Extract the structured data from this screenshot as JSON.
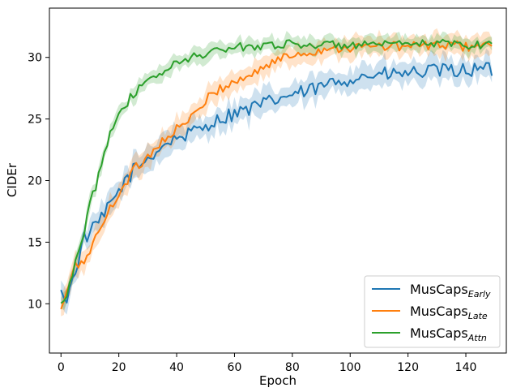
{
  "chart_data": {
    "type": "line",
    "title": "",
    "xlabel": "Epoch",
    "ylabel": "CIDEr",
    "xlim": [
      -4,
      154
    ],
    "ylim": [
      6,
      34
    ],
    "xticks": [
      0,
      20,
      40,
      60,
      80,
      100,
      120,
      140
    ],
    "yticks": [
      10,
      15,
      20,
      25,
      30
    ],
    "grid": false,
    "legend_position": "lower-right",
    "series": [
      {
        "name": "MusCaps",
        "subscript": "Early",
        "color": "#1f77b4",
        "knots": [
          [
            0,
            11.0
          ],
          [
            2,
            10.2
          ],
          [
            5,
            12.8
          ],
          [
            8,
            15.3
          ],
          [
            11,
            16.0
          ],
          [
            15,
            17.2
          ],
          [
            20,
            19.2
          ],
          [
            25,
            20.8
          ],
          [
            30,
            21.8
          ],
          [
            35,
            22.8
          ],
          [
            40,
            23.5
          ],
          [
            45,
            23.8
          ],
          [
            50,
            24.5
          ],
          [
            55,
            25.0
          ],
          [
            60,
            25.5
          ],
          [
            65,
            25.8
          ],
          [
            70,
            26.2
          ],
          [
            75,
            26.6
          ],
          [
            80,
            27.0
          ],
          [
            85,
            27.2
          ],
          [
            90,
            27.6
          ],
          [
            95,
            28.0
          ],
          [
            100,
            28.3
          ],
          [
            105,
            28.5
          ],
          [
            110,
            28.6
          ],
          [
            115,
            28.6
          ],
          [
            120,
            28.7
          ],
          [
            125,
            28.8
          ],
          [
            130,
            28.9
          ],
          [
            135,
            28.9
          ],
          [
            140,
            29.0
          ],
          [
            145,
            29.0
          ],
          [
            149,
            29.0
          ]
        ],
        "band_half_width": 0.9,
        "noise": 0.6
      },
      {
        "name": "MusCaps",
        "subscript": "Late",
        "color": "#ff7f0e",
        "knots": [
          [
            0,
            9.5
          ],
          [
            2,
            11.0
          ],
          [
            5,
            13.0
          ],
          [
            8,
            13.5
          ],
          [
            11,
            14.8
          ],
          [
            15,
            16.8
          ],
          [
            20,
            19.0
          ],
          [
            25,
            20.8
          ],
          [
            30,
            22.0
          ],
          [
            35,
            23.2
          ],
          [
            40,
            24.2
          ],
          [
            45,
            25.0
          ],
          [
            50,
            26.5
          ],
          [
            55,
            27.5
          ],
          [
            60,
            28.0
          ],
          [
            65,
            28.5
          ],
          [
            70,
            29.2
          ],
          [
            75,
            29.8
          ],
          [
            80,
            30.2
          ],
          [
            85,
            30.4
          ],
          [
            90,
            30.6
          ],
          [
            95,
            30.8
          ],
          [
            100,
            30.8
          ],
          [
            110,
            30.9
          ],
          [
            120,
            30.9
          ],
          [
            130,
            31.0
          ],
          [
            140,
            30.9
          ],
          [
            149,
            31.0
          ]
        ],
        "band_half_width": 0.8,
        "noise": 0.4
      },
      {
        "name": "MusCaps",
        "subscript": "Attn",
        "color": "#2ca02c",
        "knots": [
          [
            0,
            10.0
          ],
          [
            2,
            10.5
          ],
          [
            4,
            12.5
          ],
          [
            6,
            14.0
          ],
          [
            8,
            15.8
          ],
          [
            10,
            18.5
          ],
          [
            12,
            19.5
          ],
          [
            15,
            22.5
          ],
          [
            18,
            24.5
          ],
          [
            20,
            25.5
          ],
          [
            25,
            27.0
          ],
          [
            30,
            28.0
          ],
          [
            35,
            28.8
          ],
          [
            40,
            29.5
          ],
          [
            45,
            30.0
          ],
          [
            50,
            30.3
          ],
          [
            55,
            30.6
          ],
          [
            60,
            30.8
          ],
          [
            70,
            31.0
          ],
          [
            80,
            31.1
          ],
          [
            90,
            31.0
          ],
          [
            100,
            31.0
          ],
          [
            110,
            31.0
          ],
          [
            120,
            31.0
          ],
          [
            130,
            31.2
          ],
          [
            140,
            31.0
          ],
          [
            149,
            31.1
          ]
        ],
        "band_half_width": 0.6,
        "noise": 0.35
      }
    ]
  }
}
